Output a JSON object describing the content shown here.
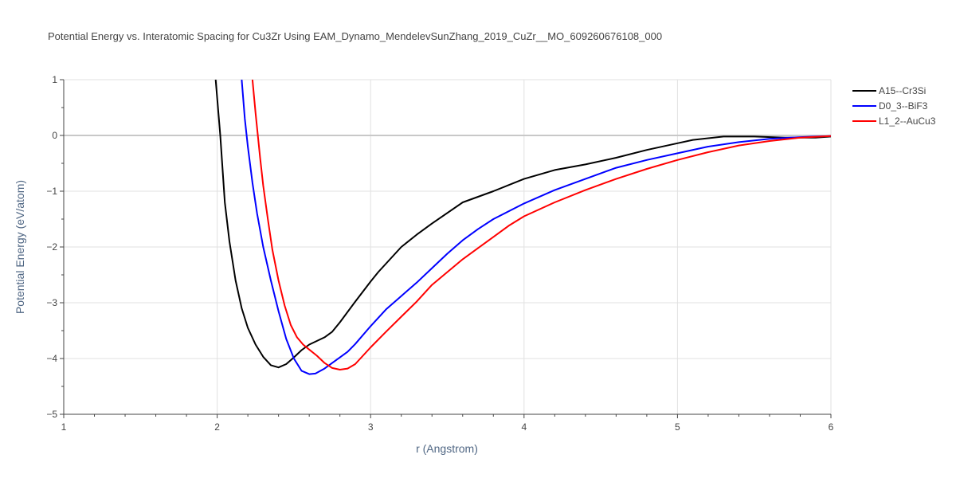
{
  "chart_data": {
    "type": "line",
    "title": "Potential Energy vs. Interatomic Spacing for Cu3Zr Using EAM_Dynamo_MendelevSunZhang_2019_CuZr__MO_609260676108_000",
    "xlabel": "r (Angstrom)",
    "ylabel": "Potential Energy (eV/atom)",
    "xlim": [
      1,
      6
    ],
    "ylim": [
      -5,
      1
    ],
    "x_ticks": [
      1,
      2,
      3,
      4,
      5,
      6
    ],
    "y_ticks": [
      1,
      0,
      -1,
      -2,
      -3,
      -4,
      -5
    ],
    "x_tick_labels": [
      "1",
      "2",
      "3",
      "4",
      "5",
      "6"
    ],
    "y_tick_labels": [
      "1",
      "0",
      "−1",
      "−2",
      "−3",
      "−4",
      "−5"
    ],
    "grid": true,
    "legend_position": "top-right",
    "series": [
      {
        "name": "A15--Cr3Si",
        "color": "#000000",
        "x": [
          1.99,
          2.02,
          2.05,
          2.08,
          2.12,
          2.16,
          2.2,
          2.25,
          2.3,
          2.35,
          2.4,
          2.45,
          2.5,
          2.55,
          2.6,
          2.7,
          2.75,
          2.8,
          2.9,
          3.0,
          3.05,
          3.2,
          3.3,
          3.4,
          3.6,
          3.8,
          4.0,
          4.2,
          4.4,
          4.6,
          4.8,
          5.0,
          5.1,
          5.3,
          5.5,
          5.7,
          5.9,
          6.0
        ],
        "y": [
          1.0,
          0.0,
          -1.2,
          -1.9,
          -2.6,
          -3.1,
          -3.45,
          -3.75,
          -3.97,
          -4.12,
          -4.16,
          -4.1,
          -3.98,
          -3.85,
          -3.75,
          -3.62,
          -3.52,
          -3.35,
          -2.98,
          -2.62,
          -2.45,
          -2.0,
          -1.78,
          -1.58,
          -1.2,
          -1.0,
          -0.78,
          -0.62,
          -0.52,
          -0.4,
          -0.26,
          -0.14,
          -0.08,
          -0.02,
          -0.02,
          -0.04,
          -0.04,
          -0.02
        ]
      },
      {
        "name": "D0_3--BiF3",
        "color": "#0000ff",
        "x": [
          2.16,
          2.18,
          2.2,
          2.23,
          2.26,
          2.3,
          2.35,
          2.4,
          2.45,
          2.5,
          2.55,
          2.6,
          2.64,
          2.7,
          2.75,
          2.8,
          2.85,
          2.9,
          3.0,
          3.1,
          3.2,
          3.3,
          3.4,
          3.5,
          3.6,
          3.7,
          3.8,
          4.0,
          4.2,
          4.4,
          4.6,
          4.8,
          5.0,
          5.2,
          5.4,
          5.6,
          5.8,
          6.0
        ],
        "y": [
          1.0,
          0.3,
          -0.2,
          -0.85,
          -1.4,
          -2.0,
          -2.6,
          -3.15,
          -3.65,
          -4.0,
          -4.22,
          -4.28,
          -4.27,
          -4.18,
          -4.08,
          -3.98,
          -3.88,
          -3.74,
          -3.42,
          -3.12,
          -2.88,
          -2.64,
          -2.38,
          -2.12,
          -1.88,
          -1.68,
          -1.5,
          -1.22,
          -0.98,
          -0.78,
          -0.58,
          -0.44,
          -0.32,
          -0.2,
          -0.12,
          -0.06,
          -0.03,
          -0.01
        ]
      },
      {
        "name": "L1_2--AuCu3",
        "color": "#ff0000",
        "x": [
          2.23,
          2.25,
          2.28,
          2.3,
          2.33,
          2.36,
          2.4,
          2.44,
          2.48,
          2.52,
          2.56,
          2.6,
          2.65,
          2.7,
          2.75,
          2.8,
          2.85,
          2.9,
          3.0,
          3.1,
          3.2,
          3.3,
          3.4,
          3.5,
          3.6,
          3.7,
          3.8,
          3.9,
          4.0,
          4.2,
          4.4,
          4.6,
          4.8,
          5.0,
          5.2,
          5.4,
          5.6,
          5.8,
          6.0
        ],
        "y": [
          1.0,
          0.4,
          -0.4,
          -0.9,
          -1.5,
          -2.05,
          -2.6,
          -3.05,
          -3.4,
          -3.62,
          -3.75,
          -3.84,
          -3.95,
          -4.08,
          -4.17,
          -4.2,
          -4.18,
          -4.1,
          -3.8,
          -3.52,
          -3.25,
          -2.98,
          -2.68,
          -2.45,
          -2.22,
          -2.02,
          -1.82,
          -1.62,
          -1.45,
          -1.2,
          -0.98,
          -0.78,
          -0.6,
          -0.44,
          -0.3,
          -0.18,
          -0.1,
          -0.04,
          -0.01
        ]
      }
    ]
  }
}
